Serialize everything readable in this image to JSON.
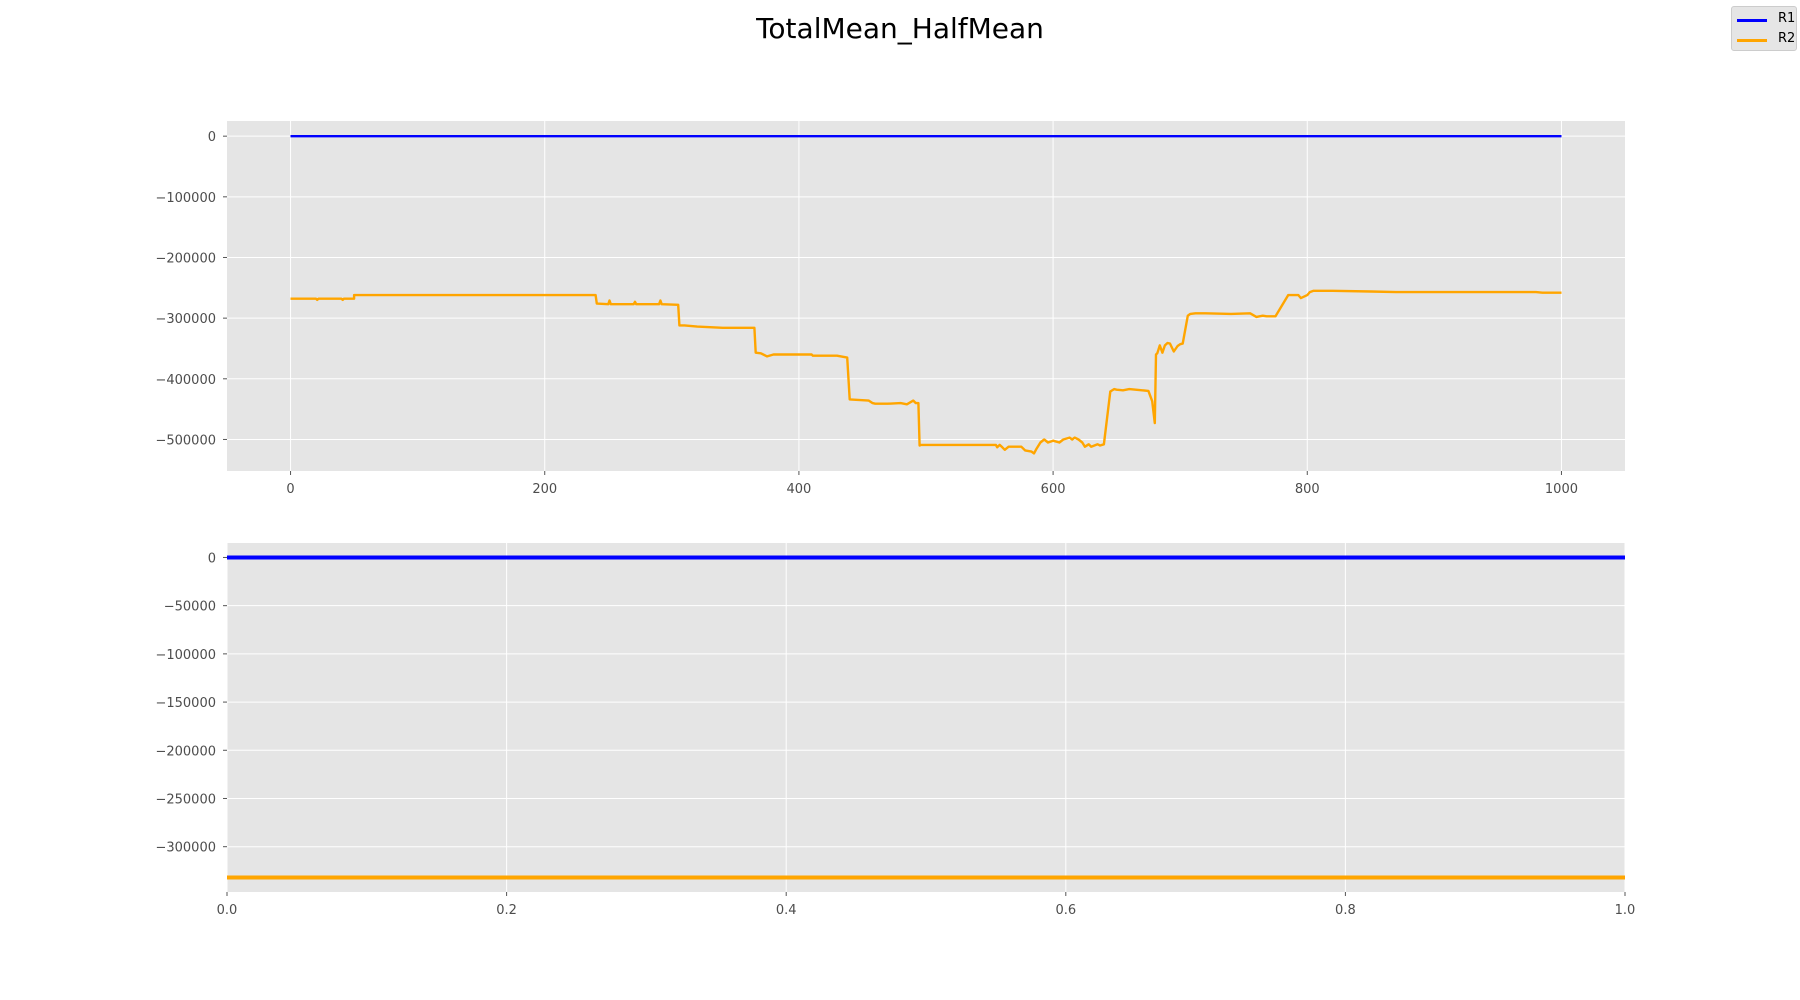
{
  "figure": {
    "title": "TotalMean_HalfMean"
  },
  "legend": {
    "placement": "top-right",
    "entries": [
      {
        "label": "R1",
        "color": "#0000ff"
      },
      {
        "label": "R2",
        "color": "#ffa500"
      }
    ]
  },
  "chart_data": [
    {
      "type": "line",
      "title": "",
      "xlabel": "",
      "ylabel": "",
      "grid": true,
      "xlim": [
        -50,
        1050
      ],
      "ylim": [
        -552000,
        25000
      ],
      "xticks": [
        0,
        200,
        400,
        600,
        800,
        1000
      ],
      "xtick_labels": [
        "0",
        "200",
        "400",
        "600",
        "800",
        "1000"
      ],
      "yticks": [
        0,
        -100000,
        -200000,
        -300000,
        -400000,
        -500000
      ],
      "ytick_labels": [
        "0",
        "−100000",
        "−200000",
        "−300000",
        "−400000",
        "−500000"
      ],
      "series": [
        {
          "name": "R1",
          "color": "#0000ff",
          "x": [
            0,
            1000
          ],
          "y": [
            0,
            0
          ]
        },
        {
          "name": "R2",
          "color": "#ffa500",
          "x": [
            0,
            20,
            21,
            22,
            40,
            41,
            42,
            50,
            50,
            240,
            241,
            250,
            251,
            252,
            270,
            271,
            272,
            290,
            291,
            292,
            305,
            306,
            310,
            320,
            330,
            340,
            365,
            366,
            370,
            375,
            380,
            410,
            411,
            430,
            438,
            440,
            455,
            458,
            460,
            470,
            480,
            485,
            490,
            492,
            494,
            495,
            496,
            555,
            556,
            558,
            560,
            562,
            565,
            575,
            578,
            583,
            585,
            587,
            590,
            593,
            596,
            600,
            605,
            608,
            613,
            615,
            617,
            620,
            623,
            625,
            628,
            630,
            635,
            637,
            640,
            645,
            648,
            650,
            655,
            660,
            670,
            675,
            678,
            680,
            681,
            682,
            684,
            686,
            688,
            690,
            692,
            695,
            698,
            700,
            702,
            706,
            708,
            712,
            720,
            740,
            755,
            760,
            765,
            768,
            775,
            785,
            793,
            795,
            800,
            802,
            805,
            810,
            820,
            850,
            870,
            900,
            940,
            980,
            985,
            1000
          ],
          "y": [
            -268000,
            -268000,
            -270000,
            -268000,
            -268000,
            -270000,
            -268000,
            -268000,
            -262000,
            -262000,
            -276000,
            -277000,
            -271000,
            -277000,
            -277000,
            -273000,
            -277000,
            -277000,
            -271000,
            -277000,
            -278000,
            -312000,
            -312000,
            -314000,
            -315000,
            -316000,
            -316000,
            -357000,
            -358000,
            -363000,
            -360000,
            -360000,
            -362000,
            -362000,
            -365000,
            -434000,
            -436000,
            -440000,
            -441000,
            -441000,
            -440000,
            -442000,
            -436000,
            -440000,
            -440000,
            -510000,
            -509000,
            -509000,
            -513000,
            -509000,
            -513000,
            -517000,
            -512000,
            -512000,
            -518000,
            -520000,
            -523000,
            -515000,
            -505000,
            -500000,
            -505000,
            -502000,
            -505000,
            -500000,
            -497000,
            -500000,
            -497000,
            -500000,
            -505000,
            -512000,
            -508000,
            -512000,
            -508000,
            -510000,
            -508000,
            -421000,
            -417000,
            -418000,
            -419000,
            -417000,
            -419000,
            -420000,
            -437000,
            -473000,
            -360000,
            -358000,
            -345000,
            -357000,
            -345000,
            -341000,
            -342000,
            -355000,
            -346000,
            -343000,
            -342000,
            -296000,
            -293000,
            -292000,
            -292000,
            -293000,
            -292000,
            -298000,
            -296000,
            -297000,
            -297000,
            -262000,
            -262000,
            -267000,
            -262000,
            -257000,
            -255000,
            -255000,
            -255000,
            -256000,
            -257000,
            -257000,
            -257000,
            -257000,
            -258000,
            -258000
          ]
        }
      ]
    },
    {
      "type": "line",
      "title": "",
      "xlabel": "",
      "ylabel": "",
      "grid": true,
      "xlim": [
        0,
        1
      ],
      "ylim": [
        -347000,
        15000
      ],
      "xticks": [
        0,
        0.2,
        0.4,
        0.6,
        0.8,
        1.0
      ],
      "xtick_labels": [
        "0.0",
        "0.2",
        "0.4",
        "0.6",
        "0.8",
        "1.0"
      ],
      "yticks": [
        0,
        -50000,
        -100000,
        -150000,
        -200000,
        -250000,
        -300000
      ],
      "ytick_labels": [
        "0",
        "−50000",
        "−100000",
        "−150000",
        "−200000",
        "−250000",
        "−300000"
      ],
      "series": [
        {
          "name": "R1",
          "color": "#0000ff",
          "x": [
            0,
            1
          ],
          "y": [
            0,
            0
          ]
        },
        {
          "name": "R2",
          "color": "#ffa500",
          "x": [
            0,
            1
          ],
          "y": [
            -332000,
            -332000
          ]
        }
      ]
    }
  ]
}
